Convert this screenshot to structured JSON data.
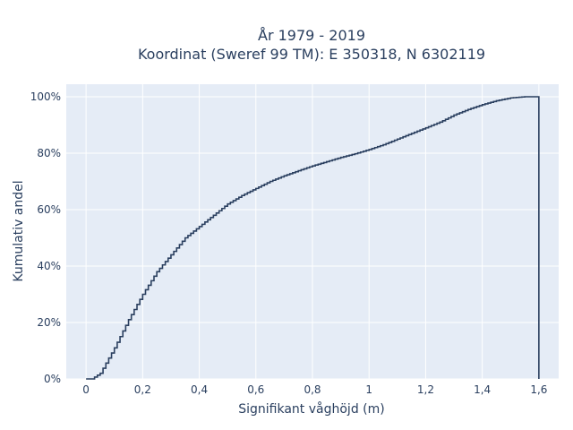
{
  "chart_data": {
    "type": "line",
    "line_shape": "step",
    "title_lines": [
      "År 1979 - 2019",
      "Koordinat (Sweref 99 TM): E 350318, N 6302119"
    ],
    "xlabel": "Signifikant våghöjd (m)",
    "ylabel": "Kumulativ andel",
    "xlim": [
      -0.07,
      1.67
    ],
    "ylim": [
      0,
      1.0
    ],
    "x_ticks": [
      0,
      0.2,
      0.4,
      0.6,
      0.8,
      1.0,
      1.2,
      1.4,
      1.6
    ],
    "x_tick_labels": [
      "0",
      "0,2",
      "0,4",
      "0,6",
      "0,8",
      "1",
      "1,2",
      "1,4",
      "1,6"
    ],
    "y_ticks": [
      0,
      0.2,
      0.4,
      0.6,
      0.8,
      1.0
    ],
    "y_tick_labels": [
      "0%",
      "20%",
      "40%",
      "60%",
      "80%",
      "100%"
    ],
    "grid": true,
    "colors": {
      "plot_background": "#e5ecf6",
      "line": "#2a3f5f",
      "grid": "#ffffff"
    },
    "series": [
      {
        "x": [
          0.0,
          0.02,
          0.05,
          0.1,
          0.15,
          0.2,
          0.25,
          0.3,
          0.35,
          0.4,
          0.45,
          0.5,
          0.55,
          0.6,
          0.65,
          0.7,
          0.75,
          0.8,
          0.85,
          0.9,
          0.95,
          1.0,
          1.05,
          1.1,
          1.15,
          1.2,
          1.25,
          1.3,
          1.35,
          1.4,
          1.45,
          1.5,
          1.55,
          1.6
        ],
        "y": [
          0.0,
          0.0,
          0.02,
          0.11,
          0.21,
          0.3,
          0.38,
          0.44,
          0.5,
          0.54,
          0.58,
          0.62,
          0.65,
          0.675,
          0.7,
          0.72,
          0.738,
          0.755,
          0.77,
          0.785,
          0.798,
          0.813,
          0.83,
          0.85,
          0.87,
          0.89,
          0.91,
          0.935,
          0.955,
          0.972,
          0.986,
          0.996,
          1.0,
          1.0
        ]
      }
    ]
  }
}
